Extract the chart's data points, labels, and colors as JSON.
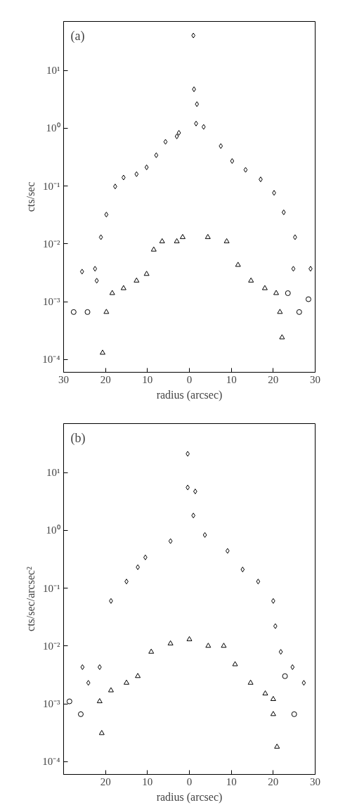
{
  "chart_data": [
    {
      "type": "scatter",
      "annotations": [
        "(a)"
      ],
      "xlabel": "radius (arcsec)",
      "ylabel": "cts/sec",
      "xlim": [
        -30,
        30
      ],
      "xticks": [
        {
          "value": -30,
          "label": "30"
        },
        {
          "value": -20,
          "label": "20"
        },
        {
          "value": -10,
          "label": "10"
        },
        0,
        10,
        20,
        30
      ],
      "ylim": [
        6e-05,
        70
      ],
      "yticks": [
        {
          "value": 10,
          "label": "10¹"
        },
        {
          "value": 1,
          "label": "10⁰"
        },
        {
          "value": 0.1,
          "label": "10⁻¹"
        },
        {
          "value": 0.01,
          "label": "10⁻²"
        },
        {
          "value": 0.001,
          "label": "10⁻³"
        },
        {
          "value": 0.0001,
          "label": "10⁻⁴"
        }
      ],
      "log": "y",
      "grid": false,
      "series": [
        {
          "color": "#000000",
          "marker": "diamond",
          "x": [
            -25.6,
            -22.5,
            -22.1,
            -21.1,
            -19.8,
            -17.7,
            -15.7,
            -12.6,
            -10.2,
            -7.9,
            -5.7,
            -3.0,
            -2.5,
            0.95,
            1.1,
            1.6,
            1.8,
            3.4,
            7.5,
            10.2,
            13.4,
            17.0,
            20.2,
            22.5,
            24.8,
            25.2,
            28.9
          ],
          "values": [
            0.0033,
            0.0037,
            0.0023,
            0.013,
            0.032,
            0.098,
            0.14,
            0.16,
            0.21,
            0.34,
            0.58,
            0.72,
            0.83,
            40,
            4.7,
            1.2,
            2.6,
            1.05,
            0.49,
            0.27,
            0.19,
            0.13,
            0.076,
            0.035,
            0.0037,
            0.013,
            0.0037
          ]
        },
        {
          "color": "#000000",
          "marker": "triangle",
          "x": [
            -20.7,
            -19.8,
            -18.4,
            -15.7,
            -12.6,
            -10.2,
            -8.5,
            -6.5,
            -3.0,
            -1.6,
            4.4,
            8.9,
            11.6,
            14.7,
            18.0,
            20.7,
            21.6,
            22.1
          ],
          "values": [
            0.00013,
            0.00066,
            0.0014,
            0.0017,
            0.0023,
            0.003,
            0.0079,
            0.011,
            0.011,
            0.013,
            0.013,
            0.011,
            0.0043,
            0.0023,
            0.0017,
            0.0014,
            0.00066,
            0.00024
          ]
        },
        {
          "color": "#000000",
          "marker": "circle",
          "x": [
            -27.6,
            -24.3,
            23.5,
            26.2,
            28.4
          ],
          "values": [
            0.00066,
            0.00066,
            0.0014,
            0.00066,
            0.0011
          ]
        }
      ]
    },
    {
      "type": "scatter",
      "annotations": [
        "(b)"
      ],
      "xlabel": "radius (arcsec)",
      "ylabel": "cts/sec/arcsec²",
      "xlim": [
        -30,
        30
      ],
      "xticks": [
        {
          "value": -30,
          "label": null
        },
        {
          "value": -20,
          "label": "20"
        },
        {
          "value": -10,
          "label": "10"
        },
        0,
        10,
        20,
        30
      ],
      "ylim": [
        6e-05,
        70
      ],
      "yticks": [
        {
          "value": 10,
          "label": "10¹"
        },
        {
          "value": 1,
          "label": "10⁰"
        },
        {
          "value": 0.1,
          "label": "10⁻¹"
        },
        {
          "value": 0.01,
          "label": "10⁻²"
        },
        {
          "value": 0.001,
          "label": "10⁻³"
        },
        {
          "value": 0.0001,
          "label": "10⁻⁴"
        }
      ],
      "log": "y",
      "grid": false,
      "series": [
        {
          "color": "#000000",
          "marker": "diamond",
          "x": [
            -25.5,
            -24.1,
            -21.4,
            -18.7,
            -15.0,
            -12.3,
            -10.5,
            -4.5,
            -0.4,
            -0.4,
            0.95,
            1.4,
            3.7,
            9.1,
            12.7,
            16.4,
            20.0,
            20.5,
            21.8,
            24.6,
            27.3
          ],
          "values": [
            0.0043,
            0.0023,
            0.0043,
            0.06,
            0.13,
            0.23,
            0.34,
            0.65,
            5.5,
            21,
            1.8,
            4.7,
            0.83,
            0.44,
            0.21,
            0.13,
            0.06,
            0.022,
            0.0079,
            0.0043,
            0.0023
          ]
        },
        {
          "color": "#000000",
          "marker": "triangle",
          "x": [
            -20.9,
            -21.4,
            -18.7,
            -15.0,
            -12.3,
            -9.1,
            -4.5,
            0,
            4.5,
            8.2,
            10.9,
            14.6,
            18.1,
            20.0,
            20.0,
            20.9
          ],
          "values": [
            0.00031,
            0.0011,
            0.0017,
            0.0023,
            0.003,
            0.0079,
            0.011,
            0.013,
            0.01,
            0.01,
            0.0048,
            0.0023,
            0.0015,
            0.0012,
            0.00066,
            0.00018
          ]
        },
        {
          "color": "#000000",
          "marker": "circle",
          "x": [
            -28.6,
            -25.9,
            22.8,
            25.0
          ],
          "values": [
            0.0011,
            0.00066,
            0.003,
            0.00066
          ]
        }
      ]
    }
  ]
}
